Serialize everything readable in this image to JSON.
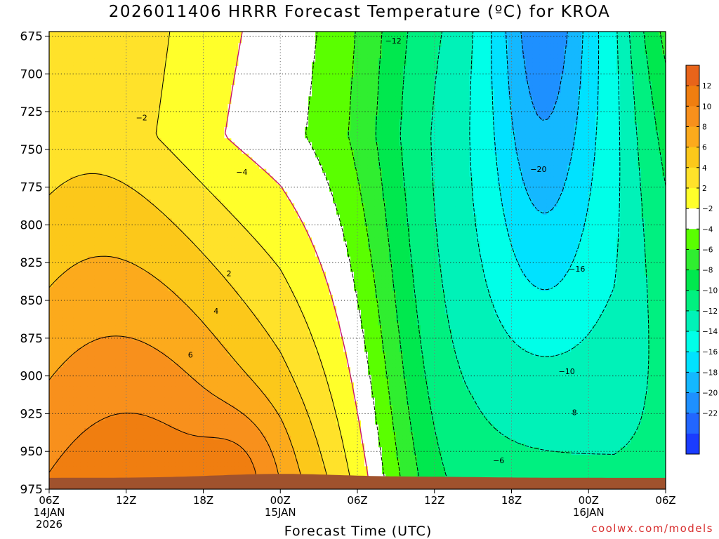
{
  "header": {
    "title": "2026011406 HRRR Forecast Temperature (ºC) for KROA",
    "credit": "coolwx.com/models"
  },
  "chart_data": {
    "type": "heatmap",
    "title": "2026011406 HRRR Forecast Temperature (ºC) for KROA",
    "xlabel": "Forecast Time (UTC)",
    "ylabel": "",
    "x_ticks": [
      {
        "hour": 0,
        "lines": [
          "06Z",
          "14JAN",
          "2026"
        ]
      },
      {
        "hour": 6,
        "lines": [
          "12Z"
        ]
      },
      {
        "hour": 12,
        "lines": [
          "18Z"
        ]
      },
      {
        "hour": 18,
        "lines": [
          "00Z",
          "15JAN"
        ]
      },
      {
        "hour": 24,
        "lines": [
          "06Z"
        ]
      },
      {
        "hour": 30,
        "lines": [
          "12Z"
        ]
      },
      {
        "hour": 36,
        "lines": [
          "18Z"
        ]
      },
      {
        "hour": 42,
        "lines": [
          "00Z",
          "16JAN"
        ]
      },
      {
        "hour": 48,
        "lines": [
          "06Z"
        ]
      }
    ],
    "x_range_hours": [
      0,
      48
    ],
    "y_ticks": [
      675,
      700,
      725,
      750,
      775,
      800,
      825,
      850,
      875,
      900,
      925,
      950,
      975
    ],
    "y_range_hPa": [
      975,
      672
    ],
    "y_unit": "hPa",
    "grid": true,
    "colorbar": {
      "labels": [
        "12",
        "10",
        "8",
        "6",
        "4",
        "2",
        "−2",
        "−4",
        "−6",
        "−8",
        "−10",
        "−12",
        "−14",
        "−16",
        "−18",
        "−20",
        "−22"
      ],
      "bins": [
        {
          "lo": 12,
          "hi": 14,
          "color": "#e8641a"
        },
        {
          "lo": 10,
          "hi": 12,
          "color": "#f07e10"
        },
        {
          "lo": 8,
          "hi": 10,
          "color": "#f8901c"
        },
        {
          "lo": 6,
          "hi": 8,
          "color": "#fcaa1c"
        },
        {
          "lo": 4,
          "hi": 6,
          "color": "#fcc81a"
        },
        {
          "lo": 2,
          "hi": 4,
          "color": "#ffe22a"
        },
        {
          "lo": 0,
          "hi": 2,
          "color": "#ffff2a"
        },
        {
          "lo": -2,
          "hi": 0,
          "color": "#ffffff"
        },
        {
          "lo": -4,
          "hi": -2,
          "color": "#5aff00"
        },
        {
          "lo": -6,
          "hi": -4,
          "color": "#30ee30"
        },
        {
          "lo": -8,
          "hi": -6,
          "color": "#00e84e"
        },
        {
          "lo": -10,
          "hi": -8,
          "color": "#00f080"
        },
        {
          "lo": -12,
          "hi": -10,
          "color": "#00f2b8"
        },
        {
          "lo": -14,
          "hi": -12,
          "color": "#00ffe8"
        },
        {
          "lo": -16,
          "hi": -14,
          "color": "#00e2ff"
        },
        {
          "lo": -18,
          "hi": -16,
          "color": "#14b8ff"
        },
        {
          "lo": -20,
          "hi": -18,
          "color": "#1e90ff"
        },
        {
          "lo": -22,
          "hi": -20,
          "color": "#2266ff"
        },
        {
          "lo": -24,
          "hi": -22,
          "color": "#1a3cff"
        }
      ]
    },
    "contour_labels": [
      {
        "text": "−12",
        "hour": 26.8,
        "hPa": 678
      },
      {
        "text": "−2",
        "hour": 7.2,
        "hPa": 729
      },
      {
        "text": "−4",
        "hour": 15.0,
        "hPa": 765
      },
      {
        "text": "−20",
        "hour": 38.1,
        "hPa": 763
      },
      {
        "text": "−16",
        "hour": 41.1,
        "hPa": 829
      },
      {
        "text": "2",
        "hour": 14.0,
        "hPa": 832
      },
      {
        "text": "4",
        "hour": 13.0,
        "hPa": 857
      },
      {
        "text": "6",
        "hour": 11.0,
        "hPa": 886
      },
      {
        "text": "−10",
        "hour": 40.3,
        "hPa": 897
      },
      {
        "text": "8",
        "hour": 40.9,
        "hPa": 924
      },
      {
        "text": "−6",
        "hour": 35.0,
        "hPa": 956
      }
    ],
    "terrain_color": "#a0522d",
    "field_description": "Temperature cross section; warm (up to ~12°C) near the surface 14JAN afternoon, cold core near −22°C around 700 hPa 15JAN 21Z–16JAN 00Z"
  }
}
